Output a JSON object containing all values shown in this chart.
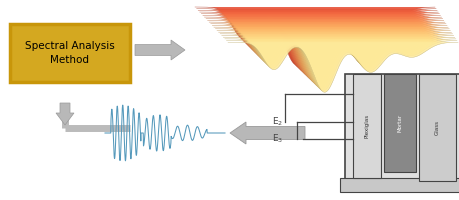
{
  "bg_color": "#ffffff",
  "box_color": "#d4a820",
  "box_edge_color": "#c8960a",
  "box_text": "Spectral Analysis\nMethod",
  "box_text_color": "#000000",
  "signal_color": "#5599bb",
  "arrow_color": "#b8b8b8",
  "arrow_edge": "#999999",
  "e2_label": "E$_2$",
  "e3_label": "E$_3$",
  "plexiglas_label": "Plexiglas",
  "mortar_label": "Mortar",
  "glass_label": "Glass",
  "panel_bg": "#e0e0e0",
  "mortar_bg": "#888888",
  "glass_bg": "#d0d0d0",
  "connector_color": "#bbbbbb",
  "line_color": "#444444"
}
